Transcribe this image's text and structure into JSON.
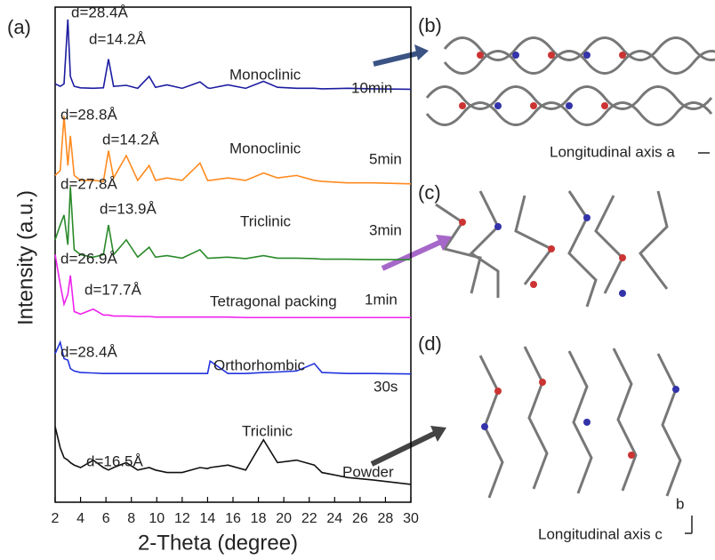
{
  "chart_data": {
    "type": "line",
    "x_label": "2-Theta (degree)",
    "y_label": "Intensity (a.u.)",
    "xlim": [
      2,
      30
    ],
    "xticks": [
      2,
      4,
      6,
      8,
      10,
      12,
      14,
      16,
      18,
      20,
      22,
      24,
      26,
      28,
      30
    ],
    "ylim": [
      0,
      100
    ],
    "x": [
      2,
      2.4,
      2.7,
      3.0,
      3.2,
      3.5,
      4,
      5,
      5.8,
      6.2,
      6.6,
      7.6,
      8.5,
      9.4,
      9.9,
      10.8,
      12,
      13.4,
      14,
      14.2,
      15.6,
      17,
      18.4,
      19.5,
      21,
      22.4,
      23,
      25,
      27,
      30
    ],
    "series": [
      {
        "name": "10min",
        "color": "#1c1ca0",
        "values": [
          84.5,
          84,
          84.5,
          97.5,
          86,
          84,
          83.7,
          83.6,
          83.7,
          89.5,
          84,
          84.2,
          83.6,
          86,
          83.8,
          84.3,
          83.6,
          84.9,
          83.7,
          83.6,
          84.3,
          83.6,
          85,
          83.8,
          83.6,
          83.6,
          83.5,
          83.6,
          83.5,
          83.4
        ]
      },
      {
        "name": "5min",
        "color": "#ff8a1e",
        "values": [
          66,
          67,
          78,
          68,
          74,
          66,
          65,
          65,
          64.8,
          71,
          65.5,
          70,
          65,
          68,
          65,
          65.5,
          65,
          68.5,
          65,
          65,
          65.5,
          65,
          66.5,
          65.5,
          66,
          65,
          64.8,
          64.5,
          64.5,
          64.3
        ]
      },
      {
        "name": "3min",
        "color": "#2a8a2a",
        "values": [
          53,
          56,
          58,
          52,
          63.7,
          51,
          50,
          49.5,
          50,
          56,
          50,
          53,
          49.5,
          51.5,
          49.5,
          49.8,
          49.3,
          51,
          49.3,
          49.3,
          49.5,
          49.2,
          49.8,
          49.3,
          49.3,
          49.2,
          49.1,
          49.1,
          49,
          49
        ]
      },
      {
        "name": "1min",
        "color": "#ee22ee",
        "values": [
          50,
          44,
          40,
          42,
          45.8,
          38.5,
          38,
          39,
          37.8,
          37.8,
          37.6,
          37.6,
          37.5,
          37.5,
          37.4,
          37.4,
          37.4,
          37.4,
          37.4,
          37.4,
          37.4,
          37.3,
          37.3,
          37.3,
          37.3,
          37.3,
          37.3,
          37.3,
          37.3,
          37.3
        ]
      },
      {
        "name": "30s",
        "color": "#2233dd",
        "values": [
          30,
          32.3,
          29,
          28.7,
          27,
          26.5,
          26.2,
          26.1,
          26,
          26,
          26,
          26,
          26,
          26,
          26,
          26,
          26,
          26,
          26,
          28.5,
          26,
          26,
          26.2,
          26.3,
          26.5,
          28,
          26.2,
          26,
          26,
          25.9
        ]
      },
      {
        "name": "Powder",
        "color": "#111111",
        "values": [
          15.3,
          11,
          9,
          8.5,
          8,
          7.5,
          7,
          8.5,
          7,
          6.5,
          7,
          8,
          6.5,
          7,
          6.5,
          6,
          6,
          7,
          6.8,
          7,
          7.5,
          6.5,
          12.6,
          8,
          8.5,
          7.5,
          6,
          5,
          4.5,
          3.6
        ]
      }
    ],
    "annotations": [
      "d=28.4Å",
      "d=14.2Å",
      "Monoclinic",
      "d=28.8Å",
      "d=14.2Å",
      "Monoclinic",
      "d=27.8Å",
      "d=13.9Å",
      "Triclinic",
      "d=26.9Å",
      "d=17.7Å",
      "Tetragonal packing",
      "d=28.4Å",
      "Orthorhombic",
      "d=16.5Å",
      "Triclinic"
    ]
  },
  "figure": {
    "panels": [
      "(a)",
      "(b)",
      "(c)",
      "(d)"
    ],
    "axis_notes": [
      "Longitudinal axis a",
      "Longitudinal axis c",
      "b"
    ]
  }
}
